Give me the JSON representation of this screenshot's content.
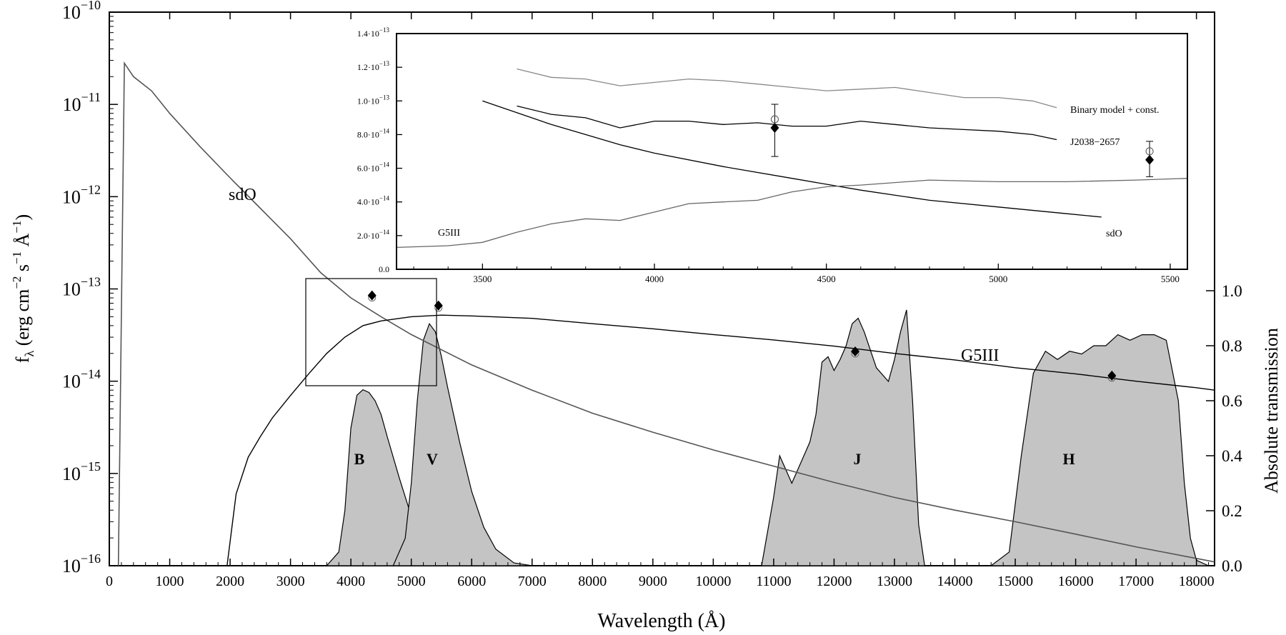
{
  "chart_data": [
    {
      "type": "line",
      "xlabel": "Wavelength (Å)",
      "ylabel_main": "f",
      "ylabel_sub": "λ",
      "ylabel_units": "(erg cm",
      "ylabel_exp1": "−2",
      "ylabel_s": " s",
      "ylabel_exp2": "−1",
      "ylabel_A": " Å",
      "ylabel_exp3": "−1",
      "ylabel_close": ")",
      "y2label": "Absolute transmission",
      "xlim": [
        0,
        18300
      ],
      "ylim": [
        1e-16,
        1e-10
      ],
      "yscale": "log",
      "y2lim": [
        0.0,
        1.0
      ],
      "x_ticks": [
        0,
        1000,
        2000,
        3000,
        4000,
        5000,
        6000,
        7000,
        8000,
        9000,
        10000,
        11000,
        12000,
        13000,
        14000,
        15000,
        16000,
        17000,
        18000
      ],
      "y_ticks": [
        {
          "base": "10",
          "exp": "−16",
          "value": 1e-16
        },
        {
          "base": "10",
          "exp": "−15",
          "value": 1e-15
        },
        {
          "base": "10",
          "exp": "−14",
          "value": 1e-14
        },
        {
          "base": "10",
          "exp": "−13",
          "value": 1e-13
        },
        {
          "base": "10",
          "exp": "−12",
          "value": 1e-12
        },
        {
          "base": "10",
          "exp": "−11",
          "value": 1e-11
        },
        {
          "base": "10",
          "exp": "−10",
          "value": 1e-10
        }
      ],
      "y2_ticks": [
        "0.0",
        "0.2",
        "0.4",
        "0.6",
        "0.8",
        "1.0"
      ],
      "series": [
        {
          "name": "sdO",
          "x": [
            150,
            250,
            400,
            700,
            1000,
            1500,
            2000,
            2500,
            3000,
            3500,
            4000,
            4500,
            5000,
            6000,
            7000,
            8000,
            9000,
            10000,
            11000,
            12000,
            13000,
            14000,
            15000,
            16000,
            17000,
            18000,
            18300
          ],
          "y": [
            1e-16,
            2.8e-11,
            2e-11,
            1.4e-11,
            8e-12,
            3.5e-12,
            1.6e-12,
            7.5e-13,
            3.5e-13,
            1.5e-13,
            8e-14,
            5e-14,
            3.2e-14,
            1.5e-14,
            8e-15,
            4.5e-15,
            2.8e-15,
            1.8e-15,
            1.2e-15,
            8e-16,
            5.5e-16,
            4e-16,
            3e-16,
            2.2e-16,
            1.6e-16,
            1.2e-16,
            1.1e-16
          ]
        },
        {
          "name": "G5III",
          "x": [
            1950,
            2100,
            2300,
            2500,
            2700,
            3000,
            3300,
            3600,
            3900,
            4200,
            4500,
            5000,
            5500,
            6000,
            7000,
            8000,
            9000,
            10000,
            11000,
            12000,
            13000,
            14000,
            15000,
            16000,
            17000,
            18000,
            18300
          ],
          "y": [
            1e-16,
            6e-16,
            1.5e-15,
            2.5e-15,
            4e-15,
            7e-15,
            1.2e-14,
            2e-14,
            3e-14,
            4e-14,
            4.5e-14,
            5e-14,
            5.2e-14,
            5.1e-14,
            4.8e-14,
            4.2e-14,
            3.7e-14,
            3.2e-14,
            2.8e-14,
            2.4e-14,
            2e-14,
            1.7e-14,
            1.4e-14,
            1.2e-14,
            1e-14,
            8.5e-15,
            8e-15
          ]
        }
      ],
      "filters": [
        {
          "name": "B",
          "x": [
            3600,
            3800,
            3900,
            4000,
            4100,
            4200,
            4300,
            4400,
            4500,
            4600,
            4800,
            5000,
            5200,
            5400,
            5600
          ],
          "y": [
            0.0,
            0.05,
            0.2,
            0.5,
            0.62,
            0.64,
            0.63,
            0.6,
            0.55,
            0.47,
            0.32,
            0.18,
            0.08,
            0.02,
            0.0
          ]
        },
        {
          "name": "V",
          "x": [
            4700,
            4900,
            5000,
            5100,
            5200,
            5300,
            5400,
            5500,
            5600,
            5800,
            6000,
            6200,
            6400,
            6700,
            7000
          ],
          "y": [
            0.0,
            0.1,
            0.3,
            0.6,
            0.82,
            0.88,
            0.85,
            0.76,
            0.65,
            0.45,
            0.27,
            0.14,
            0.06,
            0.01,
            0.0
          ]
        },
        {
          "name": "J",
          "x": [
            10800,
            11000,
            11100,
            11300,
            11600,
            11700,
            11800,
            11900,
            12000,
            12100,
            12200,
            12300,
            12400,
            12500,
            12700,
            12900,
            13000,
            13100,
            13200,
            13300,
            13400,
            13500
          ],
          "y": [
            0.0,
            0.25,
            0.4,
            0.3,
            0.45,
            0.55,
            0.74,
            0.76,
            0.71,
            0.75,
            0.8,
            0.88,
            0.9,
            0.85,
            0.72,
            0.67,
            0.75,
            0.85,
            0.93,
            0.6,
            0.15,
            0.0
          ]
        },
        {
          "name": "H",
          "x": [
            14600,
            14900,
            15100,
            15300,
            15500,
            15700,
            15900,
            16100,
            16300,
            16500,
            16700,
            16900,
            17100,
            17300,
            17500,
            17700,
            17800,
            17900,
            18000,
            18200
          ],
          "y": [
            0.0,
            0.05,
            0.4,
            0.7,
            0.78,
            0.75,
            0.78,
            0.77,
            0.8,
            0.8,
            0.84,
            0.82,
            0.84,
            0.84,
            0.82,
            0.6,
            0.3,
            0.1,
            0.02,
            0.0
          ]
        }
      ],
      "photometry": [
        {
          "x": 4350,
          "y": 8.5e-14
        },
        {
          "x": 5450,
          "y": 6.6e-14
        },
        {
          "x": 12350,
          "y": 2.1e-14
        },
        {
          "x": 16600,
          "y": 1.15e-14
        }
      ],
      "labels": {
        "sdO": "sdO",
        "G5III": "G5III",
        "B": "B",
        "V": "V",
        "J": "J",
        "H": "H"
      }
    },
    {
      "type": "line",
      "xlim": [
        3250,
        5550
      ],
      "ylim": [
        0.0,
        1.4e-13
      ],
      "x_ticks": [
        "3500",
        "4000",
        "4500",
        "5000",
        "5500"
      ],
      "x_tick_values": [
        3500,
        4000,
        4500,
        5000,
        5500
      ],
      "y_ticks": [
        {
          "text": "0.0",
          "value": 0
        },
        {
          "text": "2.0·10",
          "exp": "−14",
          "value": 2e-14
        },
        {
          "text": "4.0·10",
          "exp": "−14",
          "value": 4e-14
        },
        {
          "text": "6.0·10",
          "exp": "−14",
          "value": 6e-14
        },
        {
          "text": "8.0·10",
          "exp": "−14",
          "value": 8e-14
        },
        {
          "text": "1.0·10",
          "exp": "−13",
          "value": 1e-13
        },
        {
          "text": "1.2·10",
          "exp": "−13",
          "value": 1.2e-13
        },
        {
          "text": "1.4·10",
          "exp": "−13",
          "value": 1.4e-13
        }
      ],
      "series": [
        {
          "name": "Binary model + const.",
          "x": [
            3600,
            3700,
            3800,
            3900,
            4000,
            4100,
            4200,
            4300,
            4400,
            4500,
            4600,
            4700,
            4800,
            4900,
            5000,
            5100,
            5170
          ],
          "y": [
            1.19e-13,
            1.14e-13,
            1.13e-13,
            1.09e-13,
            1.11e-13,
            1.13e-13,
            1.12e-13,
            1.1e-13,
            1.08e-13,
            1.06e-13,
            1.07e-13,
            1.08e-13,
            1.05e-13,
            1.02e-13,
            1.02e-13,
            1e-13,
            9.6e-14
          ]
        },
        {
          "name": "J2038−2657",
          "x": [
            3600,
            3700,
            3800,
            3900,
            4000,
            4100,
            4200,
            4300,
            4400,
            4500,
            4600,
            4700,
            4800,
            4900,
            5000,
            5100,
            5170
          ],
          "y": [
            9.7e-14,
            9.2e-14,
            9e-14,
            8.4e-14,
            8.8e-14,
            8.8e-14,
            8.6e-14,
            8.7e-14,
            8.5e-14,
            8.5e-14,
            8.8e-14,
            8.6e-14,
            8.4e-14,
            8.3e-14,
            8.2e-14,
            8e-14,
            7.7e-14
          ]
        },
        {
          "name": "sdO",
          "x": [
            3500,
            3600,
            3700,
            3800,
            3900,
            4000,
            4200,
            4400,
            4600,
            4800,
            5000,
            5200,
            5300
          ],
          "y": [
            1e-13,
            9.3e-14,
            8.6e-14,
            8e-14,
            7.4e-14,
            6.9e-14,
            6.1e-14,
            5.4e-14,
            4.7e-14,
            4.1e-14,
            3.7e-14,
            3.3e-14,
            3.1e-14
          ]
        },
        {
          "name": "G5III",
          "x": [
            3250,
            3400,
            3500,
            3600,
            3700,
            3800,
            3900,
            4000,
            4100,
            4200,
            4300,
            4400,
            4500,
            4600,
            4800,
            5000,
            5200,
            5400,
            5550
          ],
          "y": [
            1.3e-14,
            1.4e-14,
            1.6e-14,
            2.2e-14,
            2.7e-14,
            3e-14,
            2.9e-14,
            3.4e-14,
            3.9e-14,
            4e-14,
            4.1e-14,
            4.6e-14,
            4.9e-14,
            5e-14,
            5.3e-14,
            5.2e-14,
            5.2e-14,
            5.3e-14,
            5.4e-14
          ]
        }
      ],
      "photometry": [
        {
          "x": 4350,
          "y": 8.4e-14,
          "err_lo": 6.7e-14,
          "err_hi": 9.8e-14
        },
        {
          "x": 5440,
          "y": 6.5e-14,
          "err_lo": 5.5e-14,
          "err_hi": 7.6e-14
        }
      ],
      "labels": {
        "binary": "Binary model + const.",
        "object": "J2038−2657",
        "sdO": "sdO",
        "G5III": "G5III"
      }
    }
  ]
}
